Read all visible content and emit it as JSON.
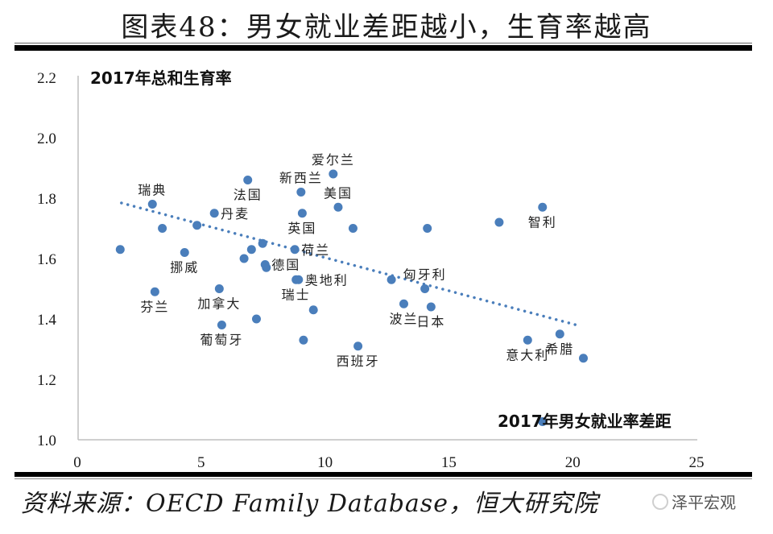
{
  "header": {
    "title": "图表48：男女就业差距越小，生育率越高"
  },
  "footer": {
    "source": "资料来源：OECD Family Database，恒大研究院",
    "watermark": "泽平宏观"
  },
  "chart_data": {
    "type": "scatter",
    "title": "图表48：男女就业差距越小，生育率越高",
    "xlabel": "2017年男女就业率差距",
    "ylabel": "2017年总和生育率",
    "xlim": [
      0,
      25
    ],
    "ylim": [
      1.0,
      2.2
    ],
    "x_ticks": [
      0,
      5,
      10,
      15,
      20,
      25
    ],
    "x_tick_labels": [
      "0",
      "5",
      "10",
      "15",
      "20",
      "25"
    ],
    "y_ticks": [
      1.0,
      1.2,
      1.4,
      1.6,
      1.8,
      2.0,
      2.2
    ],
    "y_tick_labels": [
      "1.0",
      "1.2",
      "1.4",
      "1.6",
      "1.8",
      "2.0",
      "2.2"
    ],
    "grid": false,
    "marker_color": "#4a7ebb",
    "points": [
      {
        "label": "",
        "x": 1.7,
        "y": 1.63
      },
      {
        "label": "瑞典",
        "x": 3.0,
        "y": 1.78,
        "label_pos": "above"
      },
      {
        "label": "",
        "x": 3.4,
        "y": 1.7
      },
      {
        "label": "挪威",
        "x": 4.3,
        "y": 1.62,
        "label_pos": "below"
      },
      {
        "label": "",
        "x": 4.8,
        "y": 1.71
      },
      {
        "label": "丹麦",
        "x": 5.5,
        "y": 1.75,
        "label_pos": "right"
      },
      {
        "label": "芬兰",
        "x": 3.1,
        "y": 1.49,
        "label_pos": "below"
      },
      {
        "label": "加拿大",
        "x": 5.7,
        "y": 1.5,
        "label_pos": "below"
      },
      {
        "label": "葡萄牙",
        "x": 5.8,
        "y": 1.38,
        "label_pos": "below"
      },
      {
        "label": "",
        "x": 7.2,
        "y": 1.4
      },
      {
        "label": "法国",
        "x": 6.85,
        "y": 1.86,
        "label_pos": "below"
      },
      {
        "label": "",
        "x": 6.7,
        "y": 1.6
      },
      {
        "label": "",
        "x": 7.0,
        "y": 1.63
      },
      {
        "label": "",
        "x": 7.45,
        "y": 1.65
      },
      {
        "label": "德国",
        "x": 7.55,
        "y": 1.58,
        "label_pos": "right"
      },
      {
        "label": "",
        "x": 7.6,
        "y": 1.57
      },
      {
        "label": "荷兰",
        "x": 8.75,
        "y": 1.63,
        "label_pos": "right"
      },
      {
        "label": "瑞士",
        "x": 8.8,
        "y": 1.53,
        "label_pos": "below"
      },
      {
        "label": "奥地利",
        "x": 8.9,
        "y": 1.53,
        "label_pos": "right"
      },
      {
        "label": "新西兰",
        "x": 9.0,
        "y": 1.82,
        "label_pos": "above"
      },
      {
        "label": "英国",
        "x": 9.05,
        "y": 1.75,
        "label_pos": "below"
      },
      {
        "label": "",
        "x": 9.5,
        "y": 1.43
      },
      {
        "label": "",
        "x": 9.1,
        "y": 1.33
      },
      {
        "label": "爱尔兰",
        "x": 10.3,
        "y": 1.88,
        "label_pos": "above"
      },
      {
        "label": "美国",
        "x": 10.5,
        "y": 1.77,
        "label_pos": "above"
      },
      {
        "label": "",
        "x": 11.1,
        "y": 1.7
      },
      {
        "label": "西班牙",
        "x": 11.3,
        "y": 1.31,
        "label_pos": "below"
      },
      {
        "label": "",
        "x": 12.65,
        "y": 1.53
      },
      {
        "label": "匈牙利",
        "x": 14.0,
        "y": 1.5,
        "label_pos": "above"
      },
      {
        "label": "波兰",
        "x": 13.15,
        "y": 1.45,
        "label_pos": "below"
      },
      {
        "label": "日本",
        "x": 14.25,
        "y": 1.44,
        "label_pos": "below"
      },
      {
        "label": "",
        "x": 14.1,
        "y": 1.7
      },
      {
        "label": "",
        "x": 17.0,
        "y": 1.72
      },
      {
        "label": "智利",
        "x": 18.75,
        "y": 1.77,
        "label_pos": "below"
      },
      {
        "label": "意大利",
        "x": 18.15,
        "y": 1.33,
        "label_pos": "below"
      },
      {
        "label": "希腊",
        "x": 19.45,
        "y": 1.35,
        "label_pos": "below"
      },
      {
        "label": "",
        "x": 20.4,
        "y": 1.27
      },
      {
        "label": "",
        "x": 18.75,
        "y": 1.06
      }
    ],
    "trendline": {
      "type": "linear",
      "style": "dotted",
      "x": [
        1.75,
        20.3
      ],
      "y": [
        1.784,
        1.376
      ]
    }
  }
}
